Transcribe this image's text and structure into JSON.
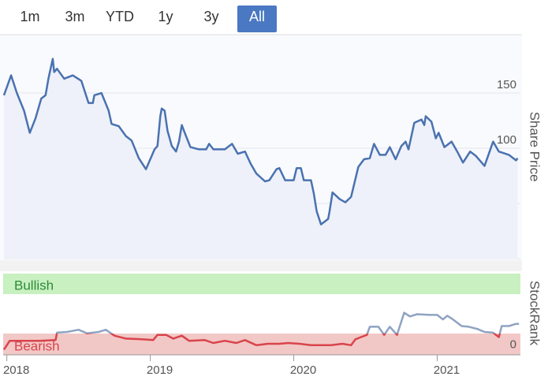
{
  "range_buttons": {
    "labels": [
      "1m",
      "3m",
      "YTD",
      "1y",
      "3y",
      "All"
    ],
    "selected": "All"
  },
  "chart_data": [
    {
      "type": "line",
      "y_label": "Share Price",
      "grid": true,
      "area": true,
      "x": [
        2017.98,
        2018.03,
        2018.07,
        2018.12,
        2018.16,
        2018.2,
        2018.24,
        2018.27,
        2018.29,
        2018.32,
        2018.33,
        2018.35,
        2018.4,
        2018.46,
        2018.52,
        2018.57,
        2018.6,
        2018.61,
        2018.66,
        2018.71,
        2018.73,
        2018.78,
        2018.83,
        2018.87,
        2018.92,
        2018.97,
        2019.03,
        2019.05,
        2019.07,
        2019.08,
        2019.1,
        2019.12,
        2019.15,
        2019.18,
        2019.2,
        2019.22,
        2019.24,
        2019.28,
        2019.34,
        2019.39,
        2019.41,
        2019.44,
        2019.52,
        2019.57,
        2019.61,
        2019.66,
        2019.7,
        2019.74,
        2019.8,
        2019.83,
        2019.88,
        2019.9,
        2019.94,
        2020.0,
        2020.02,
        2020.05,
        2020.07,
        2020.12,
        2020.14,
        2020.16,
        2020.19,
        2020.24,
        2020.25,
        2020.27,
        2020.32,
        2020.36,
        2020.4,
        2020.45,
        2020.49,
        2020.53,
        2020.56,
        2020.6,
        2020.64,
        2020.67,
        2020.71,
        2020.75,
        2020.78,
        2020.8,
        2020.84,
        2020.89,
        2020.91,
        2020.92,
        2020.96,
        2020.99,
        2021.01,
        2021.05,
        2021.1,
        2021.14,
        2021.18,
        2021.23,
        2021.27,
        2021.33,
        2021.39,
        2021.43,
        2021.5,
        2021.55,
        2021.56
      ],
      "series": [
        {
          "color": "#4a72b0",
          "values": [
            148,
            166,
            150,
            134,
            114,
            127,
            145,
            148,
            163,
            181,
            169,
            172,
            163,
            166,
            161,
            141,
            141,
            148,
            150,
            134,
            122,
            120,
            111,
            107,
            91,
            81,
            99,
            102,
            129,
            136,
            134,
            116,
            102,
            97,
            106,
            121,
            114,
            101,
            99,
            99,
            104,
            99,
            99,
            104,
            95,
            97,
            86,
            77,
            70,
            71,
            81,
            82,
            71,
            71,
            82,
            82,
            71,
            71,
            59,
            43,
            31,
            36,
            43,
            60,
            54,
            51,
            56,
            83,
            90,
            91,
            104,
            94,
            94,
            101,
            90,
            102,
            106,
            99,
            123,
            126,
            121,
            129,
            124,
            109,
            114,
            101,
            106,
            97,
            87,
            97,
            93,
            84,
            106,
            97,
            94,
            89,
            91
          ]
        }
      ],
      "xlim": [
        2017.98,
        2021.58
      ],
      "ylim": [
        0,
        200
      ],
      "yticks": [
        0,
        50,
        100,
        150
      ]
    },
    {
      "type": "line",
      "y_label": "StockRank",
      "annotations": [
        "Bullish",
        "Bearish"
      ],
      "x": [
        2017.98,
        2018.02,
        2018.06,
        2018.23,
        2018.34,
        2018.35,
        2018.42,
        2018.5,
        2018.56,
        2018.64,
        2018.69,
        2018.75,
        2018.83,
        2018.94,
        2019.02,
        2019.05,
        2019.11,
        2019.16,
        2019.22,
        2019.27,
        2019.38,
        2019.44,
        2019.52,
        2019.6,
        2019.66,
        2019.74,
        2019.82,
        2019.9,
        2019.96,
        2020.04,
        2020.12,
        2020.26,
        2020.34,
        2020.4,
        2020.43,
        2020.47,
        2020.51,
        2020.53,
        2020.59,
        2020.63,
        2020.67,
        2020.72,
        2020.77,
        2020.81,
        2020.86,
        2020.95,
        2021.0,
        2021.04,
        2021.07,
        2021.11,
        2021.17,
        2021.22,
        2021.28,
        2021.33,
        2021.39,
        2021.43,
        2021.45,
        2021.5,
        2021.55,
        2021.57
      ],
      "series": [
        {
          "color": "#8fa3c2",
          "values": [
            -3,
            9,
            9,
            9,
            10,
            20,
            21,
            24,
            19,
            21,
            24,
            16,
            12,
            11,
            10,
            17,
            17,
            12,
            16,
            9,
            10,
            6,
            9,
            6,
            10,
            3,
            5,
            5,
            6,
            5,
            3,
            3,
            5,
            3,
            11,
            14,
            17,
            28,
            28,
            17,
            28,
            17,
            47,
            42,
            45,
            44,
            44,
            38,
            43,
            38,
            29,
            28,
            25,
            21,
            20,
            14,
            29,
            29,
            32,
            32
          ]
        }
      ],
      "bearish_color": "#d9444c",
      "xlim": [
        2017.98,
        2021.58
      ],
      "xticks": [
        2018,
        2019,
        2020,
        2021
      ],
      "ylim": [
        -10,
        100
      ],
      "yticks": [
        0
      ]
    }
  ]
}
